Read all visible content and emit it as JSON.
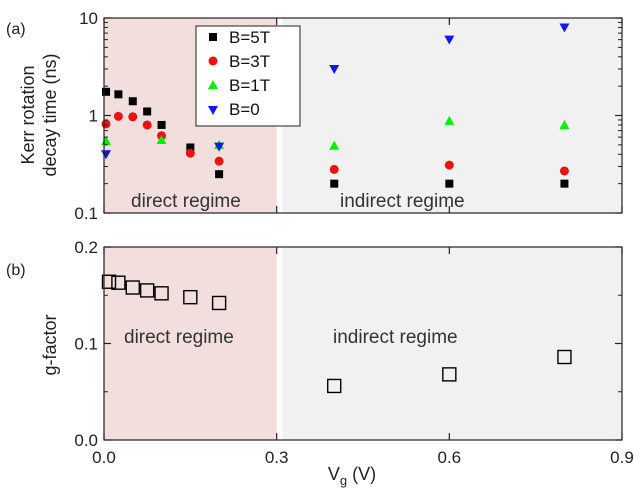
{
  "chart_data": [
    {
      "type": "scatter",
      "panel_label": "(a)",
      "ylabel_line1": "Kerr rotation",
      "ylabel_line2": "decay time (ns)",
      "yscale": "log",
      "ylim": [
        0.1,
        10
      ],
      "yticks": [
        "0.1",
        "1",
        "10"
      ],
      "xlim": [
        0,
        0.9
      ],
      "regions": [
        {
          "label": "direct regime",
          "x_range": [
            0,
            0.3
          ],
          "color": "#f2dedd"
        },
        {
          "label": "indirect regime",
          "x_range": [
            0.31,
            0.9
          ],
          "color": "#f1f1f1"
        }
      ],
      "legend_position": "top-center",
      "series": [
        {
          "name": "B=5T",
          "marker": "square",
          "color": "#000000",
          "x": [
            0.0,
            0.025,
            0.05,
            0.075,
            0.1,
            0.15,
            0.2,
            0.4,
            0.6,
            0.8
          ],
          "y": [
            1.75,
            1.65,
            1.4,
            1.1,
            0.8,
            0.47,
            0.25,
            0.2,
            0.2,
            0.2
          ]
        },
        {
          "name": "B=3T",
          "marker": "circle",
          "color": "#ee1111",
          "x": [
            0.0,
            0.025,
            0.05,
            0.075,
            0.1,
            0.15,
            0.2,
            0.4,
            0.6,
            0.8
          ],
          "y": [
            0.82,
            0.98,
            0.97,
            0.8,
            0.62,
            0.41,
            0.34,
            0.28,
            0.31,
            0.27
          ]
        },
        {
          "name": "B=1T",
          "marker": "triangle-up",
          "color": "#00ee00",
          "x": [
            0.0,
            0.1,
            0.2,
            0.4,
            0.6,
            0.8
          ],
          "y": [
            0.55,
            0.56,
            0.5,
            0.49,
            0.88,
            0.8
          ]
        },
        {
          "name": "B=0",
          "marker": "triangle-down",
          "color": "#1515ee",
          "x": [
            0.0,
            0.2,
            0.4,
            0.6,
            0.8
          ],
          "y": [
            0.4,
            0.48,
            3.0,
            6.0,
            8.0
          ]
        }
      ]
    },
    {
      "type": "scatter",
      "panel_label": "(b)",
      "ylabel": "g-factor",
      "ylim": [
        0.0,
        0.2
      ],
      "yticks": [
        "0.0",
        "0.1",
        "0.2"
      ],
      "xlim": [
        0,
        0.9
      ],
      "xticks": [
        "0.0",
        "0.3",
        "0.6",
        "0.9"
      ],
      "xlabel": "V",
      "xlabel_sub": "g",
      "xlabel_unit": " (V)",
      "regions": [
        {
          "label": "direct regime",
          "x_range": [
            0,
            0.3
          ],
          "color": "#f2dedd"
        },
        {
          "label": "indirect regime",
          "x_range": [
            0.31,
            0.9
          ],
          "color": "#f1f1f1"
        }
      ],
      "series": [
        {
          "marker": "open-square",
          "color": "#000000",
          "x": [
            0.0,
            0.025,
            0.05,
            0.075,
            0.1,
            0.15,
            0.2,
            0.4,
            0.6,
            0.8
          ],
          "y": [
            0.164,
            0.163,
            0.158,
            0.155,
            0.152,
            0.148,
            0.142,
            0.056,
            0.068,
            0.086
          ]
        }
      ]
    }
  ]
}
